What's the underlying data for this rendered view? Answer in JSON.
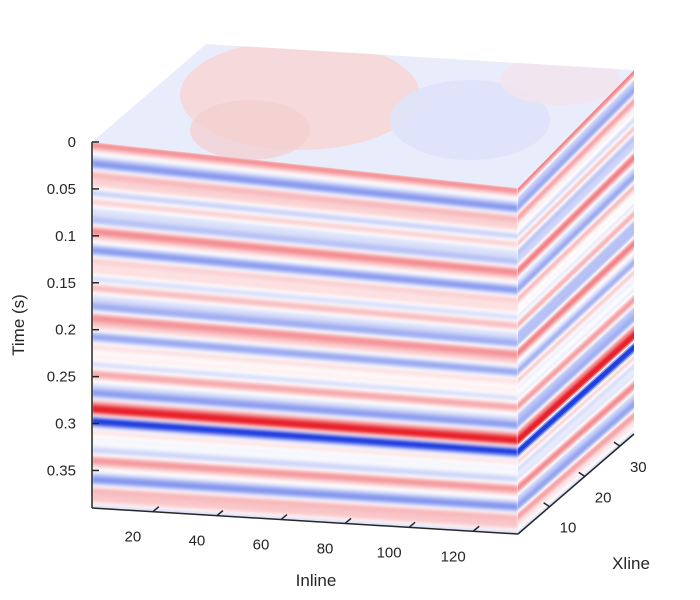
{
  "chart_data": {
    "type": "heatmap",
    "subtype": "3d-seismic-cube",
    "xlabel": "Inline",
    "ylabel": "Xline",
    "zlabel": "Time (s)",
    "x_ticks": [
      20,
      40,
      60,
      80,
      100,
      120
    ],
    "y_ticks": [
      10,
      20,
      30
    ],
    "z_ticks": [
      "0",
      "0.05",
      "0.1",
      "0.15",
      "0.2",
      "0.25",
      "0.3",
      "0.35"
    ],
    "xlim": [
      1,
      134
    ],
    "ylim": [
      1,
      34
    ],
    "zlim": [
      0,
      0.39
    ],
    "colormap": "blue-white-red",
    "colors": {
      "negative": "#1f3fe0",
      "zero": "#ffffff",
      "positive": "#e8202a",
      "axis": "#262626"
    },
    "strong_reflectors": [
      {
        "time": 0.285,
        "polarity": "positive"
      },
      {
        "time": 0.297,
        "polarity": "negative"
      }
    ]
  }
}
